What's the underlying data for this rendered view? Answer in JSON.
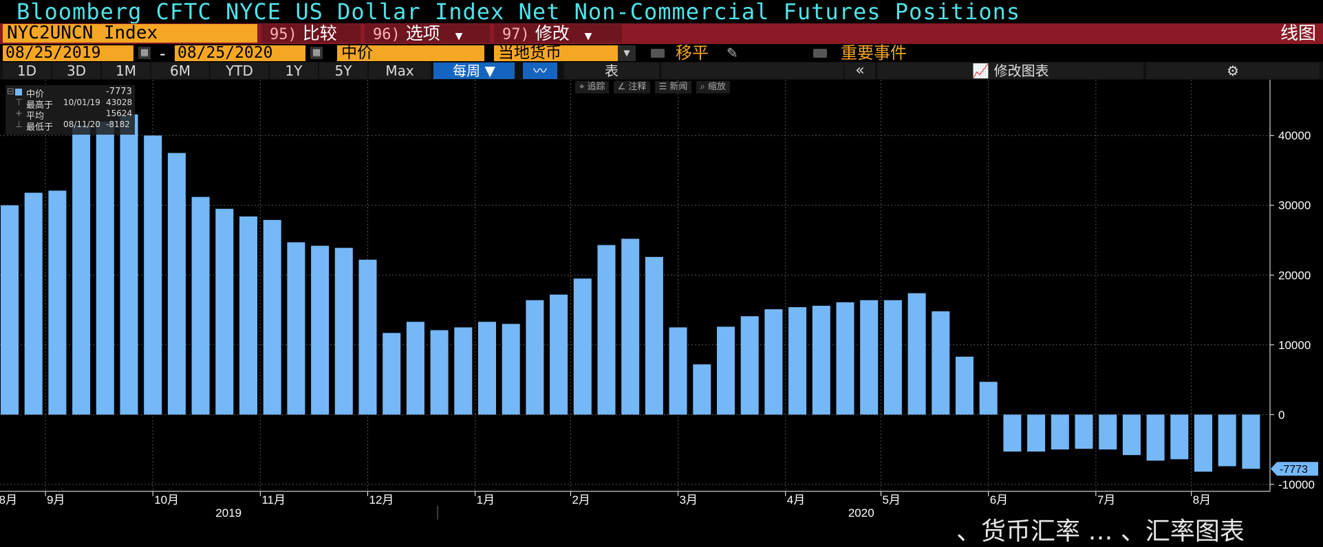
{
  "title": "Bloomberg CFTC NYCE US Dollar Index Net Non-Commercial Futures Positions",
  "toolbar": {
    "ticker": "NYC2UNCN Index",
    "compare_num": "95)",
    "compare_label": "比较",
    "options_num": "96)",
    "options_label": "选项",
    "edit_num": "97)",
    "edit_label": "修改",
    "chart_type": "线图"
  },
  "controls": {
    "start_date": "08/25/2019",
    "dash": "-",
    "end_date": "08/25/2020",
    "price_field": "中价",
    "currency": "当地货币",
    "shift_label": "移平",
    "events_label": "重要事件"
  },
  "periods": [
    "1D",
    "3D",
    "1M",
    "6M",
    "YTD",
    "1Y",
    "5Y",
    "Max"
  ],
  "frequency": "每周",
  "table_label": "表",
  "collapse_label": "«",
  "edit_chart_label": "修改图表",
  "tools": [
    "追踪",
    "注释",
    "新闻",
    "缩放"
  ],
  "legend": {
    "series_name": "中价",
    "series_last": "-7773",
    "high_label": "最高于",
    "high_date": "10/01/19",
    "high_value": "43028",
    "avg_label": "平均",
    "avg_value": "15624",
    "low_label": "最低于",
    "low_date": "08/11/20",
    "low_value": "-8182"
  },
  "colors": {
    "bar": "#75b8f8",
    "axis": "#ffffff",
    "last_label_bg": "#75b8f8",
    "title": "#4fe3e8",
    "accent": "#f5a623"
  },
  "watermark": "、货币汇率  …  、汇率图表",
  "chart_data": {
    "type": "bar",
    "ylim": [
      -11000,
      48000
    ],
    "yticks": [
      40000,
      30000,
      20000,
      10000,
      0,
      -10000
    ],
    "ytick_labels": [
      "40000",
      "30000",
      "20000",
      "10000",
      "0",
      "-10000"
    ],
    "last_value_label": "-7773",
    "month_labels": [
      "8月",
      "9月",
      "10月",
      "11月",
      "12月",
      "1月",
      "2月",
      "3月",
      "4月",
      "5月",
      "6月",
      "7月",
      "8月"
    ],
    "month_positions": [
      0,
      2,
      6.5,
      11,
      15.5,
      20,
      24,
      28.5,
      33,
      37,
      41.5,
      46,
      50
    ],
    "year_labels": [
      "2019",
      "2020"
    ],
    "year_positions": [
      9,
      35.5
    ],
    "values": [
      30000,
      31800,
      32100,
      41500,
      42000,
      43028,
      40000,
      37500,
      31200,
      29500,
      28400,
      27900,
      24700,
      24200,
      23900,
      22200,
      11700,
      13300,
      12100,
      12500,
      13300,
      13000,
      16400,
      17200,
      19500,
      24300,
      25200,
      22600,
      12500,
      7200,
      12600,
      14100,
      15100,
      15400,
      15600,
      16100,
      16400,
      16400,
      17400,
      14800,
      8300,
      4700,
      -5300,
      -5300,
      -5000,
      -4900,
      -5000,
      -5800,
      -6600,
      -6400,
      -8182,
      -7400,
      -7773
    ]
  }
}
